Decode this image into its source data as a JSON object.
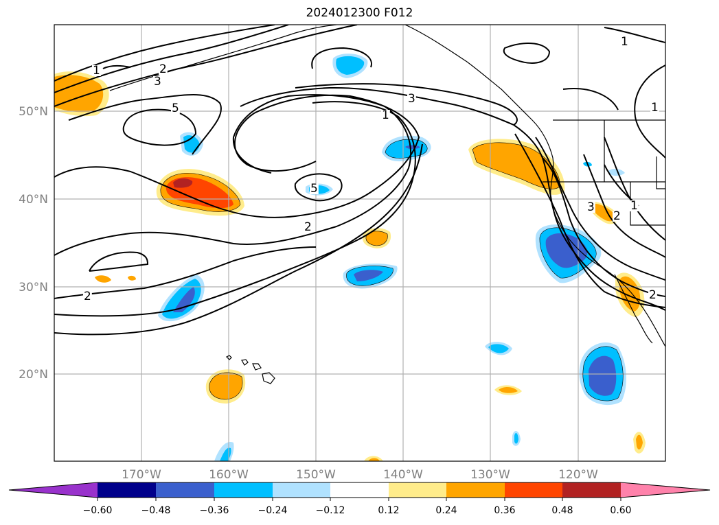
{
  "title": "2024012300 F012",
  "map": {
    "lat_labels": [
      "50°N",
      "40°N",
      "30°N",
      "20°N"
    ],
    "lon_labels": [
      "170°W",
      "160°W",
      "150°W",
      "140°W",
      "130°W",
      "120°W"
    ],
    "contour_labels": [
      "1",
      "2",
      "3",
      "5",
      "3",
      "1",
      "5",
      "2",
      "2",
      "1",
      "1",
      "2",
      "3",
      "1",
      "2"
    ]
  },
  "colorbar": {
    "ticks": [
      "−0.60",
      "−0.48",
      "−0.36",
      "−0.24",
      "−0.12",
      "0.12",
      "0.24",
      "0.36",
      "0.48",
      "0.60"
    ],
    "colors": [
      "#9932cc",
      "#00008b",
      "#3a5fcd",
      "#00bfff",
      "#b0e2ff",
      "#ffffff",
      "#ffec8b",
      "#ffa500",
      "#ff4500",
      "#b22222",
      "#ff82ab"
    ]
  }
}
